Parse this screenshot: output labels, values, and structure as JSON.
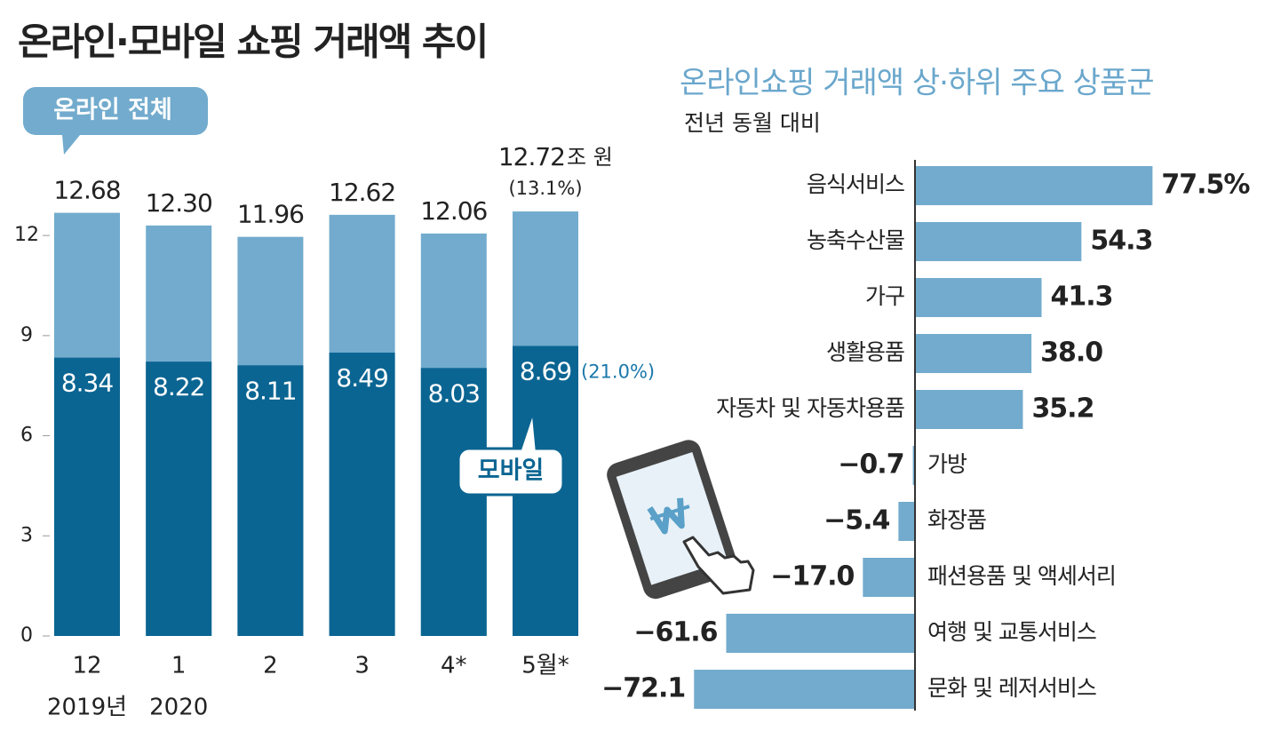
{
  "chart_data": [
    {
      "type": "bar",
      "title": "온라인·모바일 쇼핑 거래액 추이",
      "categories": [
        "12",
        "1",
        "2",
        "3",
        "4*",
        "5월*"
      ],
      "x_sublabels": [
        "2019년",
        "2020",
        null,
        null,
        null,
        null
      ],
      "ylim": [
        0,
        14
      ],
      "yticks": [
        0,
        3,
        6,
        9,
        12
      ],
      "unit": "조 원",
      "series": [
        {
          "name": "온라인 전체",
          "color": "#72abcd",
          "values": [
            12.68,
            12.3,
            11.96,
            12.62,
            12.06,
            12.72
          ],
          "value_labels": [
            "12.68",
            "12.30",
            "11.96",
            "12.62",
            "12.06",
            "12.72"
          ],
          "note": "(13.1%)"
        },
        {
          "name": "모바일",
          "color": "#0b6592",
          "values": [
            8.34,
            8.22,
            8.11,
            8.49,
            8.03,
            8.69
          ],
          "note": "(21.0%)"
        }
      ]
    },
    {
      "type": "barh",
      "title": "온라인쇼핑 거래액 상·하위 주요 상품군",
      "subtitle": "전년 동월 대비",
      "categories": [
        "음식서비스",
        "농축수산물",
        "가구",
        "생활용품",
        "자동차 및 자동차용품",
        "가방",
        "화장품",
        "패션용품 및 액세서리",
        "여행 및 교통서비스",
        "문화 및 레저서비스"
      ],
      "values": [
        77.5,
        54.3,
        41.3,
        38.0,
        35.2,
        -0.7,
        -5.4,
        -17.0,
        -61.6,
        -72.1
      ],
      "value_labels": [
        "77.5%",
        "54.3",
        "41.3",
        "38.0",
        "35.2",
        "−0.7",
        "−5.4",
        "−17.0",
        "−61.6",
        "−72.1"
      ],
      "color": "#72abcd",
      "xlim": [
        -100,
        110
      ]
    }
  ]
}
